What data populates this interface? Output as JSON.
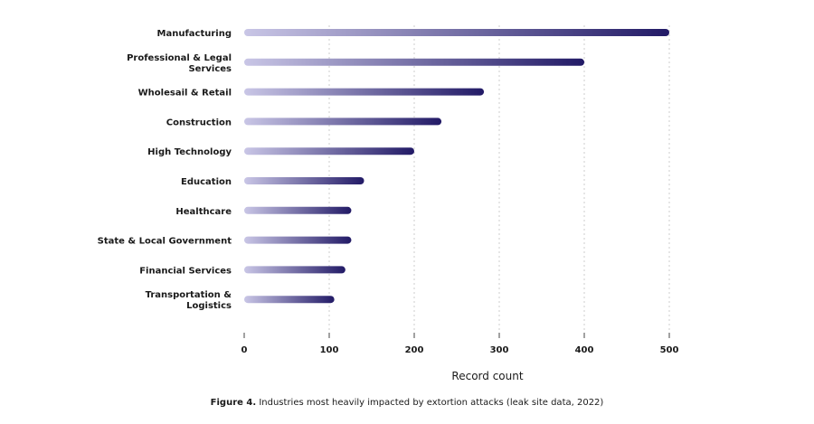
{
  "chart_data": {
    "type": "bar",
    "orientation": "horizontal",
    "categories": [
      "Manufacturing",
      "Professional & Legal Services",
      "Wholesail & Retail",
      "Construction",
      "High Technology",
      "Education",
      "Healthcare",
      "State & Local Government",
      "Financial Services",
      "Transportation & Logistics"
    ],
    "category_lines": [
      [
        "Manufacturing"
      ],
      [
        "Professional & Legal",
        "Services"
      ],
      [
        "Wholesail & Retail"
      ],
      [
        "Construction"
      ],
      [
        "High Technology"
      ],
      [
        "Education"
      ],
      [
        "Healthcare"
      ],
      [
        "State & Local Government"
      ],
      [
        "Financial Services"
      ],
      [
        "Transportation &",
        "Logistics"
      ]
    ],
    "values": [
      500,
      400,
      282,
      232,
      200,
      141,
      126,
      126,
      119,
      106
    ],
    "xlabel": "Record count",
    "ylabel": "",
    "xlim": [
      0,
      500
    ],
    "xticks": [
      "0",
      "100",
      "200",
      "300",
      "400",
      "500"
    ],
    "grid": "vertical dotted",
    "colors": {
      "bar_start": "#c9c6e6",
      "bar_end": "#221a66",
      "grid": "#cccccc"
    }
  },
  "caption": {
    "figure_label": "Figure 4.",
    "text": " Industries most heavily impacted by extortion attacks (leak site data, 2022)"
  }
}
